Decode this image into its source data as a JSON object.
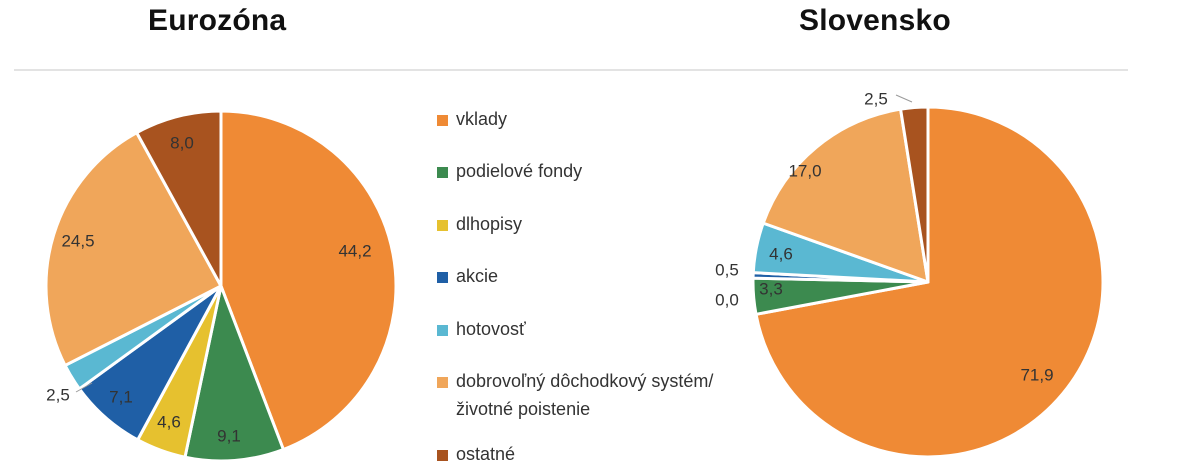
{
  "titles": {
    "left": "Eurozóna",
    "right": "Slovensko"
  },
  "legend": {
    "items": [
      {
        "label": "vklady",
        "color": "#ef8a35"
      },
      {
        "label": "podielové fondy",
        "color": "#3c8a4f"
      },
      {
        "label": "dlhopisy",
        "color": "#e6c12f"
      },
      {
        "label": "akcie",
        "color": "#1f5fa6"
      },
      {
        "label": "hotovosť",
        "color": "#5ab8d2"
      },
      {
        "label": "dobrovoľný dôchodkový systém/životné poistenie",
        "color": "#f0a65a"
      },
      {
        "label": "ostatné",
        "color": "#a8531f"
      }
    ]
  },
  "chart_data": [
    {
      "type": "pie",
      "title": "Eurozóna",
      "categories": [
        "vklady",
        "podielové fondy",
        "dlhopisy",
        "akcie",
        "hotovosť",
        "dobrovoľný dôchodkový systém/životné poistenie",
        "ostatné"
      ],
      "values": [
        44.2,
        9.1,
        4.6,
        7.1,
        2.5,
        24.5,
        8.0
      ],
      "labels": [
        "44,2",
        "9,1",
        "4,6",
        "7,1",
        "2,5",
        "24,5",
        "8,0"
      ],
      "start": "12 o'clock",
      "direction": "clockwise"
    },
    {
      "type": "pie",
      "title": "Slovensko",
      "categories": [
        "vklady",
        "podielové fondy",
        "dlhopisy",
        "akcie",
        "hotovosť",
        "dobrovoľný dôchodkový systém/životné poistenie",
        "ostatné"
      ],
      "values": [
        71.9,
        3.3,
        0.0,
        0.5,
        4.6,
        17.0,
        2.5
      ],
      "labels": [
        "71,9",
        "3,3",
        "0,0",
        "0,5",
        "4,6",
        "17,0",
        "2,5"
      ],
      "start": "12 o'clock",
      "direction": "clockwise"
    }
  ]
}
